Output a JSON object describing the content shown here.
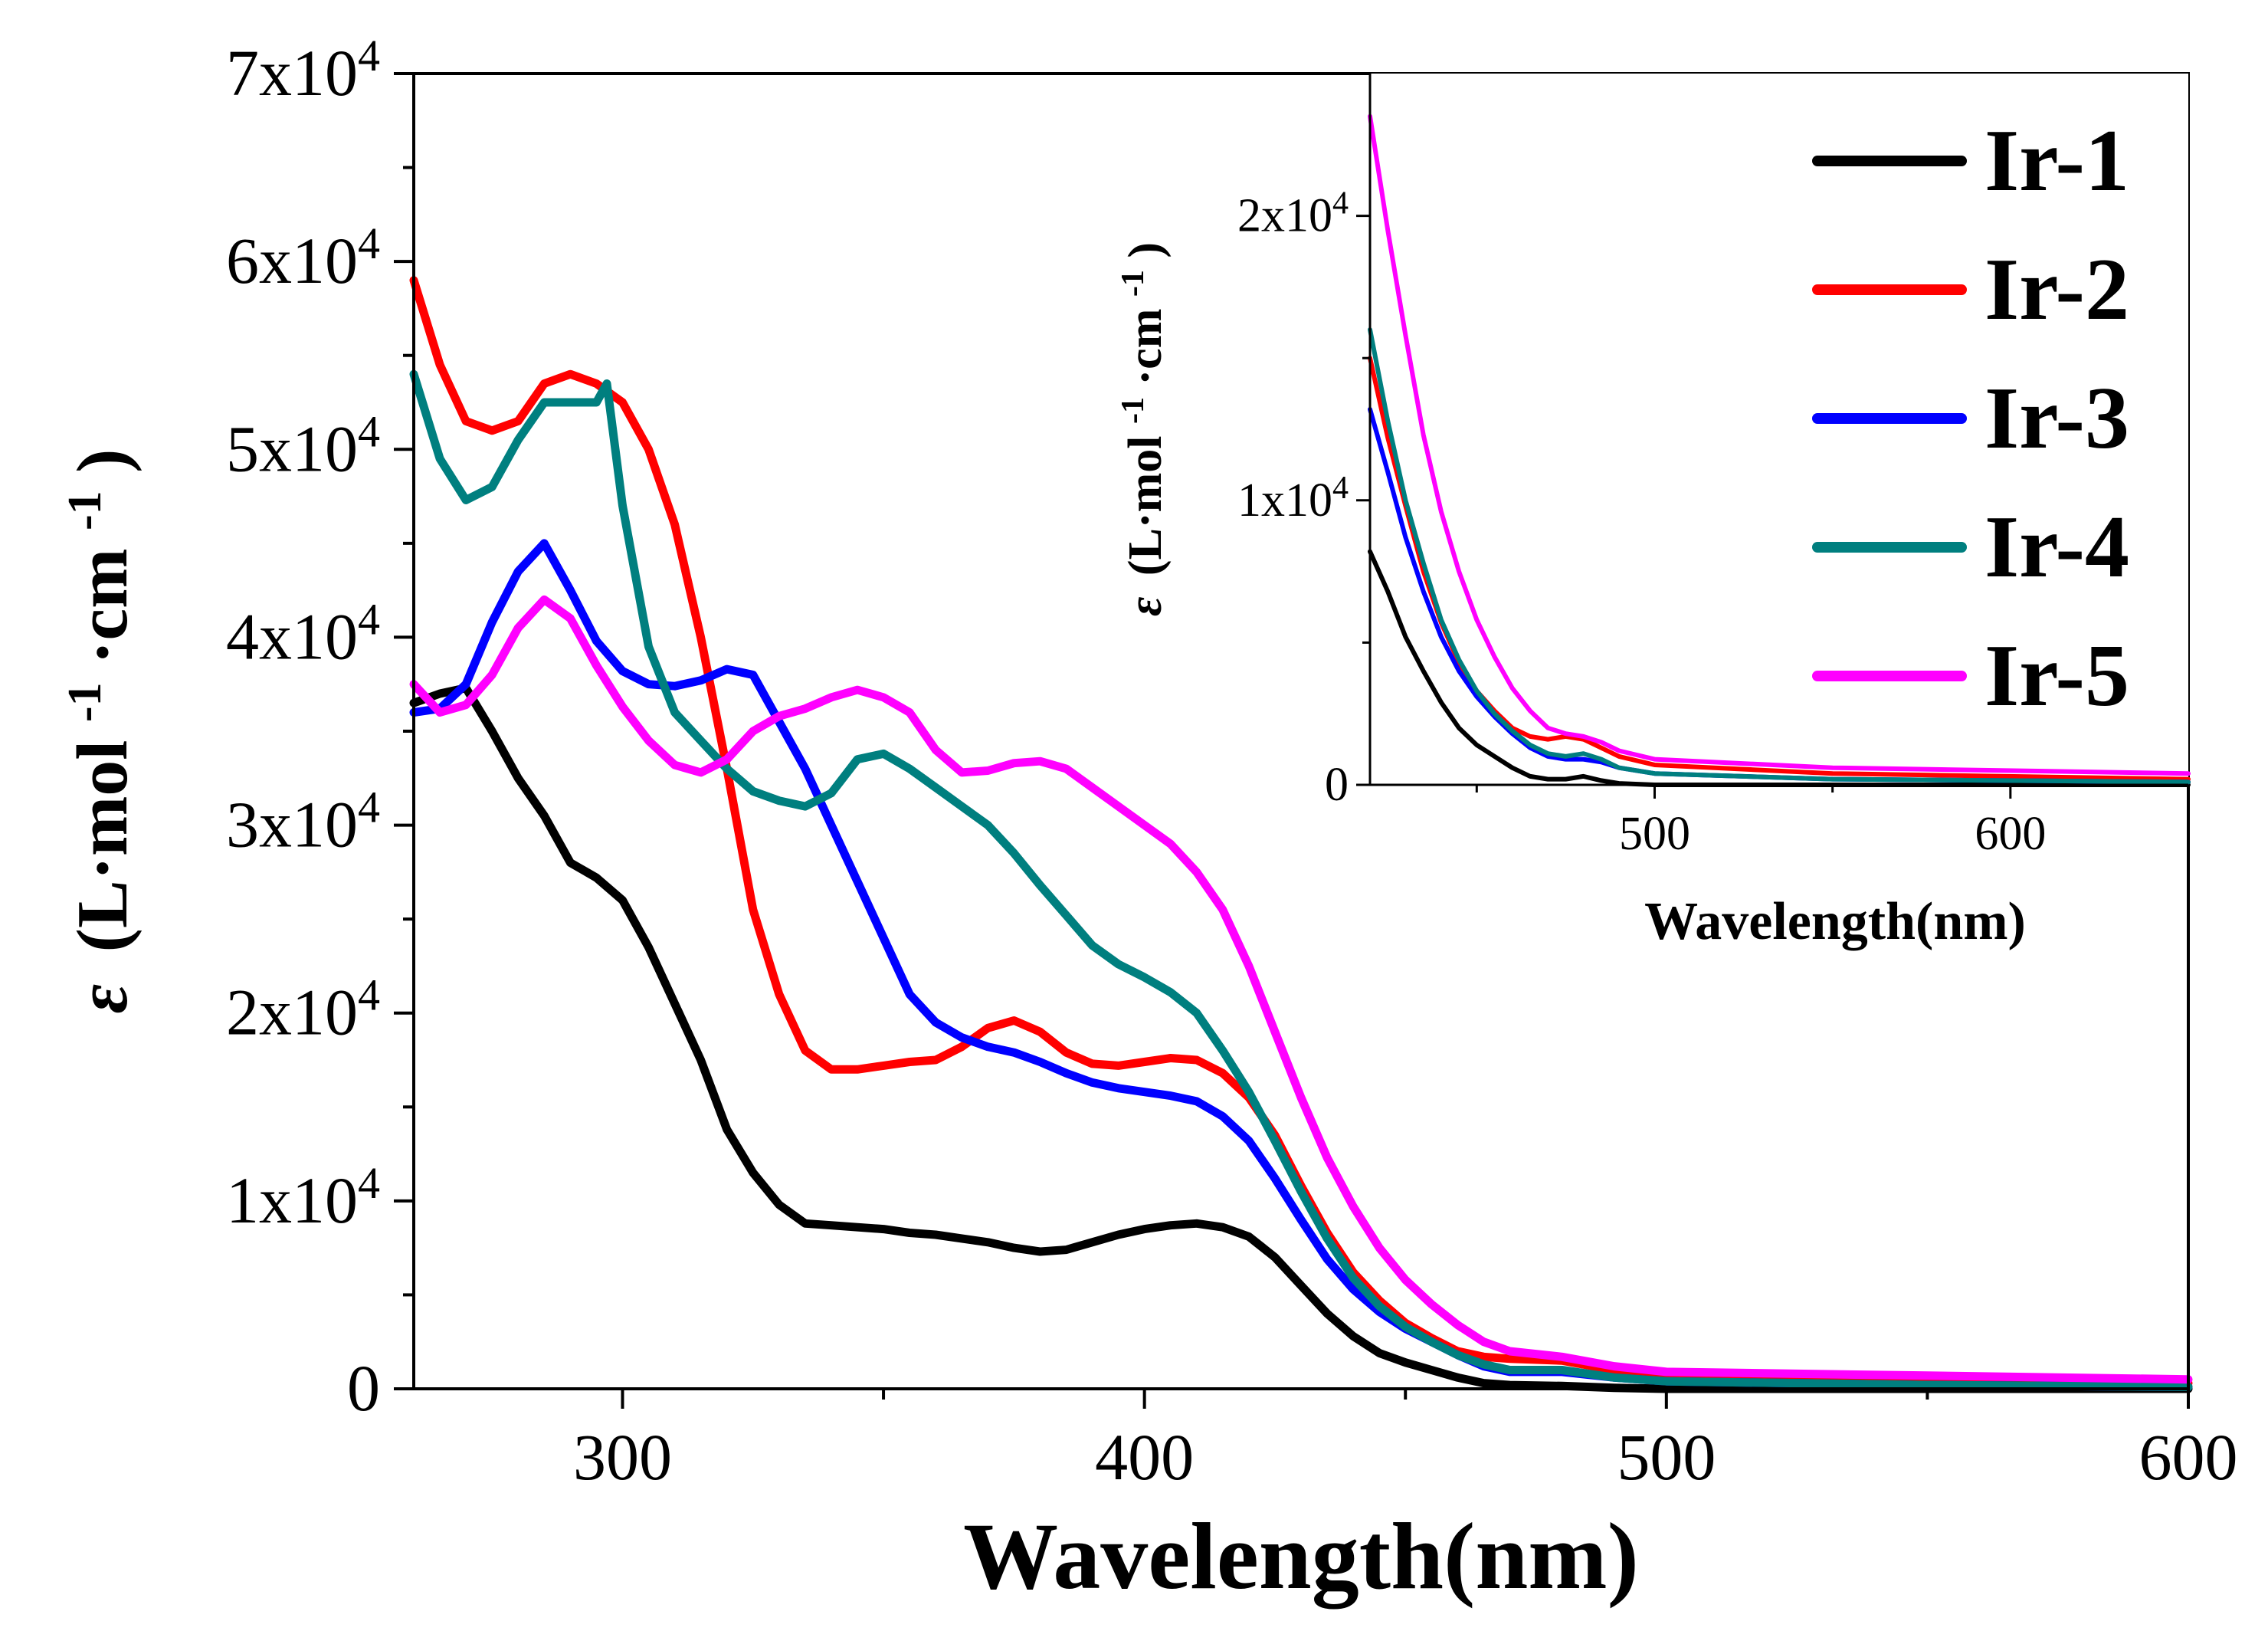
{
  "chart_data": [
    {
      "id": "main",
      "type": "line",
      "title": "",
      "xlabel": "Wavelength(nm)",
      "ylabel": "ε (L·mol-1·cm-1)",
      "ylabel_parts": {
        "symbol": "ε",
        "body": "(L·mol",
        "exp1": "-1",
        "mid": "·cm",
        "exp2": "-1",
        "close": ")"
      },
      "xlim": [
        260,
        600
      ],
      "ylim": [
        0,
        70000
      ],
      "xticks": [
        {
          "value": 300,
          "label": "300"
        },
        {
          "value": 400,
          "label": "400"
        },
        {
          "value": 500,
          "label": "500"
        },
        {
          "value": 600,
          "label": "600"
        }
      ],
      "yticks": [
        {
          "value": 0,
          "mantissa": "0",
          "exp": ""
        },
        {
          "value": 10000,
          "mantissa": "1x10",
          "exp": "4"
        },
        {
          "value": 20000,
          "mantissa": "2x10",
          "exp": "4"
        },
        {
          "value": 30000,
          "mantissa": "3x10",
          "exp": "4"
        },
        {
          "value": 40000,
          "mantissa": "4x10",
          "exp": "4"
        },
        {
          "value": 50000,
          "mantissa": "5x10",
          "exp": "4"
        },
        {
          "value": 60000,
          "mantissa": "6x10",
          "exp": "4"
        },
        {
          "value": 70000,
          "mantissa": "7x10",
          "exp": "4"
        }
      ],
      "grid": false,
      "legend_position": "top-right",
      "series": [
        {
          "name": "Ir-1",
          "color": "#000000",
          "x": [
            260,
            265,
            270,
            275,
            280,
            285,
            290,
            295,
            300,
            305,
            310,
            315,
            320,
            325,
            330,
            335,
            340,
            345,
            350,
            355,
            360,
            365,
            370,
            375,
            380,
            385,
            390,
            395,
            400,
            405,
            410,
            415,
            420,
            425,
            430,
            435,
            440,
            445,
            450,
            455,
            460,
            465,
            470,
            480,
            490,
            500,
            550,
            600
          ],
          "y": [
            36500,
            37000,
            37300,
            35000,
            32500,
            30500,
            28000,
            27200,
            26000,
            23500,
            20500,
            17500,
            13800,
            11500,
            9800,
            8800,
            8700,
            8600,
            8500,
            8300,
            8200,
            8000,
            7800,
            7500,
            7300,
            7400,
            7800,
            8200,
            8500,
            8700,
            8800,
            8600,
            8100,
            7000,
            5500,
            4000,
            2800,
            1900,
            1400,
            1000,
            600,
            300,
            200,
            150,
            50,
            0,
            0,
            0
          ]
        },
        {
          "name": "Ir-2",
          "color": "#ff0000",
          "x": [
            260,
            265,
            270,
            275,
            280,
            285,
            290,
            295,
            300,
            305,
            310,
            315,
            320,
            325,
            330,
            335,
            340,
            345,
            350,
            355,
            360,
            365,
            370,
            375,
            380,
            385,
            390,
            395,
            400,
            405,
            410,
            415,
            420,
            425,
            430,
            435,
            440,
            445,
            450,
            455,
            460,
            465,
            470,
            480,
            490,
            500,
            550,
            600
          ],
          "y": [
            59000,
            54500,
            51500,
            51000,
            51500,
            53500,
            54000,
            53500,
            52500,
            50000,
            46000,
            40000,
            33000,
            25500,
            21000,
            18000,
            17000,
            17000,
            17200,
            17400,
            17500,
            18200,
            19200,
            19600,
            19000,
            17900,
            17300,
            17200,
            17400,
            17600,
            17500,
            16800,
            15500,
            13500,
            10800,
            8300,
            6200,
            4700,
            3500,
            2700,
            2000,
            1700,
            1600,
            1500,
            1000,
            700,
            500,
            300
          ]
        },
        {
          "name": "Ir-3",
          "color": "#0000ff",
          "x": [
            260,
            265,
            270,
            275,
            280,
            285,
            290,
            295,
            300,
            305,
            310,
            315,
            320,
            325,
            330,
            335,
            340,
            345,
            350,
            355,
            360,
            365,
            370,
            375,
            380,
            385,
            390,
            395,
            400,
            405,
            410,
            415,
            420,
            425,
            430,
            435,
            440,
            445,
            450,
            455,
            460,
            465,
            470,
            480,
            490,
            500,
            550,
            600
          ],
          "y": [
            36000,
            36200,
            37500,
            40800,
            43500,
            45000,
            42500,
            39800,
            38200,
            37500,
            37400,
            37700,
            38300,
            38000,
            35500,
            33000,
            30000,
            27000,
            24000,
            21000,
            19500,
            18700,
            18200,
            17900,
            17400,
            16800,
            16300,
            16000,
            15800,
            15600,
            15300,
            14500,
            13200,
            11200,
            9000,
            6900,
            5300,
            4100,
            3200,
            2500,
            1800,
            1200,
            900,
            900,
            600,
            400,
            200,
            100
          ]
        },
        {
          "name": "Ir-4",
          "color": "#007f7f",
          "x": [
            260,
            265,
            270,
            275,
            280,
            285,
            290,
            295,
            297,
            300,
            305,
            310,
            315,
            320,
            325,
            330,
            335,
            340,
            345,
            350,
            355,
            360,
            365,
            370,
            375,
            380,
            385,
            390,
            395,
            400,
            405,
            410,
            415,
            420,
            425,
            430,
            435,
            440,
            445,
            450,
            455,
            460,
            465,
            470,
            480,
            490,
            500,
            550,
            600
          ],
          "y": [
            54000,
            49500,
            47300,
            48000,
            50500,
            52500,
            52500,
            52500,
            53500,
            47000,
            39500,
            36000,
            34500,
            33000,
            31800,
            31300,
            31000,
            31700,
            33500,
            33800,
            33000,
            32000,
            31000,
            30000,
            28500,
            26800,
            25200,
            23600,
            22600,
            21900,
            21100,
            20000,
            18000,
            15800,
            13200,
            10500,
            8000,
            5900,
            4400,
            3300,
            2500,
            1800,
            1300,
            1000,
            1000,
            600,
            400,
            200,
            100
          ]
        },
        {
          "name": "Ir-5",
          "color": "#ff00ff",
          "x": [
            260,
            265,
            270,
            275,
            280,
            285,
            290,
            295,
            300,
            305,
            310,
            315,
            320,
            325,
            330,
            335,
            340,
            345,
            350,
            355,
            360,
            365,
            370,
            375,
            380,
            385,
            390,
            395,
            400,
            405,
            410,
            415,
            420,
            425,
            430,
            435,
            440,
            445,
            450,
            455,
            460,
            465,
            470,
            480,
            490,
            500,
            550,
            600
          ],
          "y": [
            37500,
            36000,
            36400,
            38000,
            40500,
            42000,
            41000,
            38500,
            36300,
            34500,
            33200,
            32800,
            33500,
            35000,
            35800,
            36200,
            36800,
            37200,
            36800,
            36000,
            34000,
            32800,
            32900,
            33300,
            33400,
            33000,
            32000,
            31000,
            30000,
            29000,
            27500,
            25500,
            22500,
            19000,
            15500,
            12300,
            9700,
            7500,
            5800,
            4500,
            3400,
            2500,
            2000,
            1700,
            1200,
            900,
            700,
            500
          ]
        }
      ]
    },
    {
      "id": "inset",
      "type": "line",
      "title": "",
      "xlabel": "Wavelength(nm)",
      "ylabel": "ε (L·mol-1·cm-1)",
      "ylabel_parts": {
        "symbol": "ε",
        "body": "(L·mol",
        "exp1": "-1",
        "mid": "·cm",
        "exp2": "-1",
        "close": ")"
      },
      "xlim": [
        420,
        650
      ],
      "ylim": [
        0,
        25000
      ],
      "xticks": [
        {
          "value": 500,
          "label": "500"
        },
        {
          "value": 600,
          "label": "600"
        }
      ],
      "yticks": [
        {
          "value": 0,
          "mantissa": "0",
          "exp": ""
        },
        {
          "value": 10000,
          "mantissa": "1x10",
          "exp": "4"
        },
        {
          "value": 20000,
          "mantissa": "2x10",
          "exp": "4"
        }
      ],
      "grid": false,
      "series": [
        {
          "name": "Ir-1",
          "color": "#000000",
          "x": [
            420,
            425,
            430,
            435,
            440,
            445,
            450,
            455,
            460,
            465,
            470,
            475,
            480,
            485,
            490,
            500,
            550,
            650
          ],
          "y": [
            8200,
            6800,
            5200,
            4000,
            2900,
            2000,
            1400,
            1000,
            600,
            300,
            200,
            200,
            300,
            150,
            50,
            0,
            0,
            0
          ]
        },
        {
          "name": "Ir-2",
          "color": "#ff0000",
          "x": [
            420,
            425,
            430,
            435,
            440,
            445,
            450,
            455,
            460,
            465,
            470,
            475,
            480,
            485,
            490,
            500,
            550,
            650
          ],
          "y": [
            15000,
            12200,
            9800,
            7500,
            5700,
            4300,
            3300,
            2600,
            2000,
            1700,
            1600,
            1700,
            1600,
            1300,
            1000,
            700,
            400,
            200
          ]
        },
        {
          "name": "Ir-3",
          "color": "#0000ff",
          "x": [
            420,
            425,
            430,
            435,
            440,
            445,
            450,
            455,
            460,
            465,
            470,
            475,
            480,
            485,
            490,
            500,
            550,
            650
          ],
          "y": [
            13200,
            11000,
            8700,
            6800,
            5200,
            4000,
            3100,
            2400,
            1800,
            1300,
            1000,
            900,
            900,
            800,
            600,
            400,
            200,
            100
          ]
        },
        {
          "name": "Ir-4",
          "color": "#007f7f",
          "x": [
            420,
            425,
            430,
            435,
            440,
            445,
            450,
            455,
            460,
            465,
            470,
            475,
            480,
            485,
            490,
            500,
            550,
            650
          ],
          "y": [
            16000,
            12800,
            10000,
            7800,
            5800,
            4400,
            3300,
            2500,
            1900,
            1400,
            1100,
            1000,
            1100,
            900,
            600,
            400,
            200,
            100
          ]
        },
        {
          "name": "Ir-5",
          "color": "#ff00ff",
          "x": [
            420,
            425,
            430,
            435,
            440,
            445,
            450,
            455,
            460,
            465,
            470,
            475,
            480,
            485,
            490,
            500,
            550,
            650
          ],
          "y": [
            23500,
            19500,
            15800,
            12300,
            9600,
            7500,
            5800,
            4500,
            3400,
            2600,
            2000,
            1800,
            1700,
            1500,
            1200,
            900,
            600,
            400
          ]
        }
      ]
    }
  ]
}
